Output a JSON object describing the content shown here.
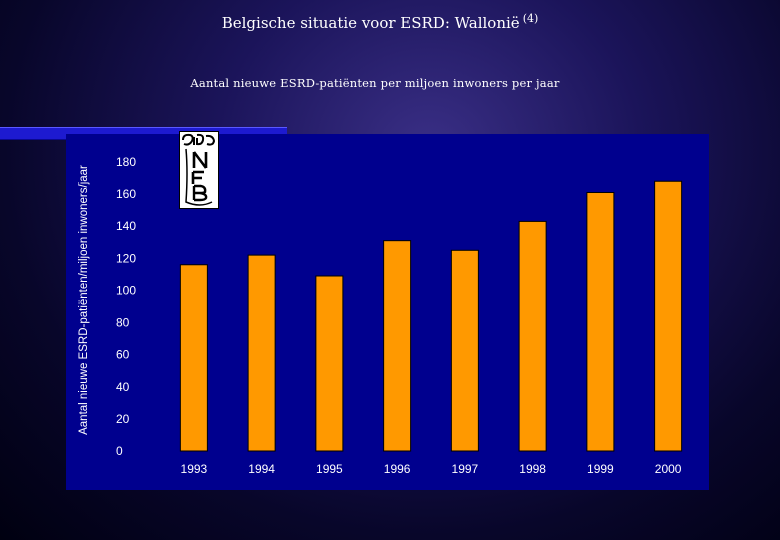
{
  "slide": {
    "title": "Belgische situatie voor ESRD: Wallonië",
    "title_ref": "(4)",
    "subtitle": "Aantal nieuwe ESRD-patiënten per miljoen inwoners per jaar",
    "logo_text": "NFB"
  },
  "colors": {
    "bar": "#ff9900",
    "plot_background": "#00008e",
    "accent_bar": "#1d1ad0",
    "text": "#ffffff"
  },
  "chart_data": {
    "type": "bar",
    "title": "",
    "xlabel": "",
    "ylabel": "Aantal nieuwe ESRD-patiënten/miljoen inwoners/jaar",
    "categories": [
      "1993",
      "1994",
      "1995",
      "1996",
      "1997",
      "1998",
      "1999",
      "2000"
    ],
    "series": [
      {
        "values": [
          116,
          122,
          109,
          131,
          125,
          143,
          161,
          168
        ]
      }
    ],
    "ylim": [
      0,
      180
    ],
    "yticks": [
      0,
      20,
      40,
      60,
      80,
      100,
      120,
      140,
      160,
      180
    ],
    "grid": false,
    "legend": "none"
  }
}
